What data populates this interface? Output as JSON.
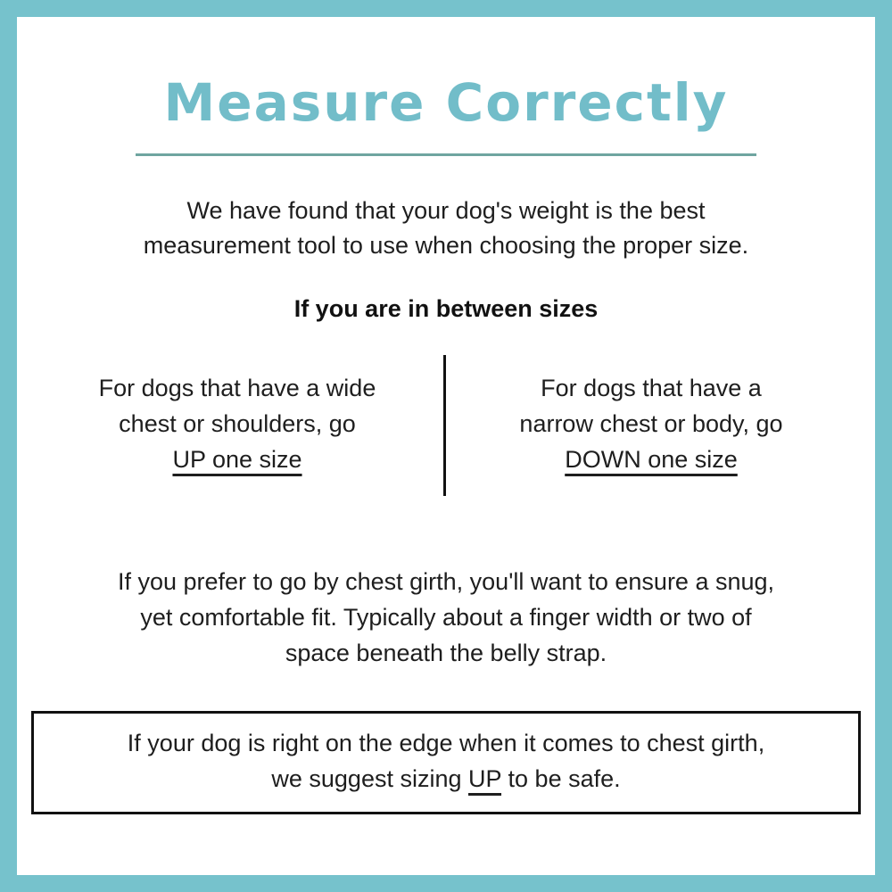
{
  "page": {
    "title": "Measure Correctly",
    "intro": {
      "lines": [
        "We have found that your dog's weight is the best",
        "measurement tool to use when choosing the proper size."
      ]
    },
    "between": {
      "heading": "If you are in between sizes",
      "left": {
        "lines": [
          "For dogs that have a wide",
          "chest or shoulders, go"
        ],
        "emphasis": "UP one size"
      },
      "right": {
        "lines": [
          "For dogs that have a",
          "narrow chest or body, go"
        ],
        "emphasis": "DOWN one size"
      }
    },
    "girth": {
      "lines": [
        "If you prefer to go by chest girth, you'll want to ensure a snug,",
        "yet comfortable fit. Typically about a finger width or two of",
        "space beneath the belly strap."
      ]
    },
    "note_box": {
      "line1": "If your dog is right on the edge when it comes to chest girth,",
      "line2_before": "we suggest sizing ",
      "line2_emphasis": "UP",
      "line2_after": " to be safe."
    },
    "colors": {
      "frame_border": "#76c2cc",
      "title": "#72bdc9",
      "title_divider": "#6fa5a0",
      "body_text": "#1e1e1e",
      "rule_and_box": "#111111",
      "background": "#ffffff"
    }
  }
}
